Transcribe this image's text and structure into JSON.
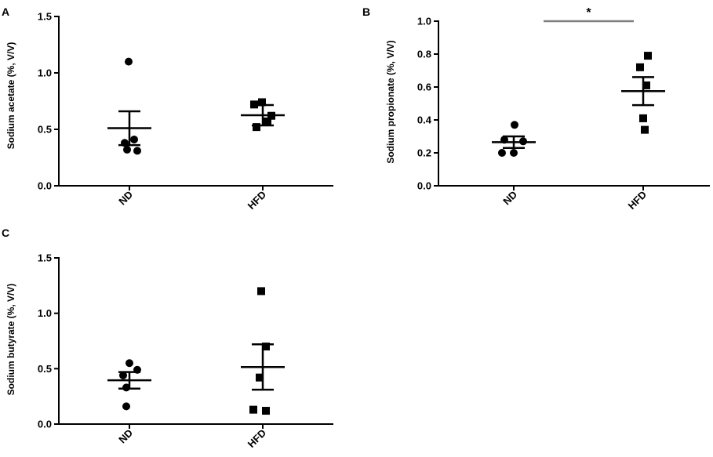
{
  "chart_data": [
    {
      "type": "scatter",
      "panel": "A",
      "ylabel": "Sodium acetate (%, V/V)",
      "ylim": [
        0,
        1.5
      ],
      "yticks": [
        "0.0",
        "0.5",
        "1.0",
        "1.5"
      ],
      "categories": [
        "ND",
        "HFD"
      ],
      "series": [
        {
          "category": "ND",
          "marker": "circle",
          "points": [
            1.1,
            0.41,
            0.38,
            0.32,
            0.31
          ],
          "mean": 0.51,
          "sem_upper": 0.66,
          "sem_lower": 0.36
        },
        {
          "category": "HFD",
          "marker": "square",
          "points": [
            0.74,
            0.72,
            0.62,
            0.57,
            0.52
          ],
          "mean": 0.625,
          "sem_upper": 0.715,
          "sem_lower": 0.535
        }
      ],
      "annotations": []
    },
    {
      "type": "scatter",
      "panel": "B",
      "ylabel": "Sodium propionate (%, V/V)",
      "ylim": [
        0,
        1.0
      ],
      "yticks": [
        "0.0",
        "0.2",
        "0.4",
        "0.6",
        "0.8",
        "1.0"
      ],
      "categories": [
        "ND",
        "HFD"
      ],
      "series": [
        {
          "category": "ND",
          "marker": "circle",
          "points": [
            0.37,
            0.28,
            0.27,
            0.2,
            0.2
          ],
          "mean": 0.265,
          "sem_upper": 0.3,
          "sem_lower": 0.23
        },
        {
          "category": "HFD",
          "marker": "square",
          "points": [
            0.79,
            0.72,
            0.61,
            0.41,
            0.34
          ],
          "mean": 0.575,
          "sem_upper": 0.66,
          "sem_lower": 0.49
        }
      ],
      "annotations": [
        {
          "type": "significance",
          "text": "*",
          "from": "ND",
          "to": "HFD",
          "y": 1.0
        }
      ]
    },
    {
      "type": "scatter",
      "panel": "C",
      "ylabel": "Sodium butyrate (%, V/V)",
      "ylim": [
        0,
        1.5
      ],
      "yticks": [
        "0.0",
        "0.5",
        "1.0",
        "1.5"
      ],
      "categories": [
        "ND",
        "HFD"
      ],
      "series": [
        {
          "category": "ND",
          "marker": "circle",
          "points": [
            0.55,
            0.49,
            0.44,
            0.33,
            0.16
          ],
          "mean": 0.395,
          "sem_upper": 0.47,
          "sem_lower": 0.32
        },
        {
          "category": "HFD",
          "marker": "square",
          "points": [
            1.2,
            0.7,
            0.42,
            0.13,
            0.12
          ],
          "mean": 0.515,
          "sem_upper": 0.72,
          "sem_lower": 0.31
        }
      ],
      "annotations": []
    }
  ]
}
